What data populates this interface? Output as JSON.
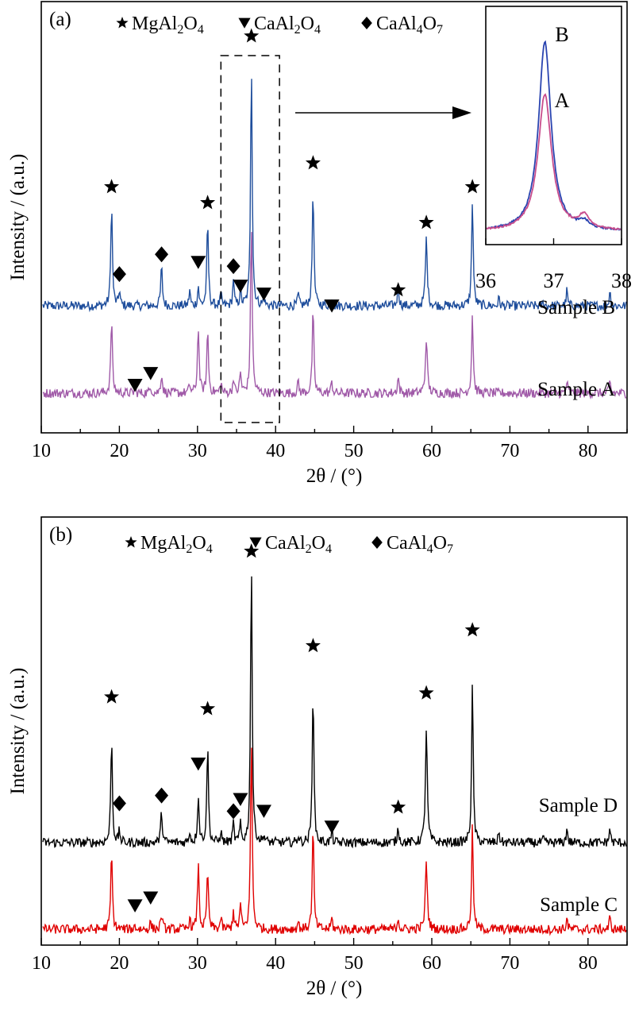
{
  "colors": {
    "sample_a": "#a05aa8",
    "sample_b": "#1f4e9c",
    "sample_c": "#e00000",
    "sample_d": "#000000",
    "inset_a": "#c84c8c",
    "inset_b": "#2a44b0"
  },
  "legend": {
    "star_label": [
      "MgAl",
      "2",
      "O",
      "4"
    ],
    "triangle_label": [
      "CaAl",
      "2",
      "O",
      "4"
    ],
    "diamond_label": [
      "CaAl",
      "4",
      "O",
      "7"
    ]
  },
  "chart_data": [
    {
      "type": "line",
      "panel_label": "(a)",
      "xlabel": "2θ / (°)",
      "ylabel": "Intensity / (a.u.)",
      "xlim": [
        10,
        85
      ],
      "x_ticks": [
        10,
        20,
        30,
        40,
        50,
        60,
        70,
        80
      ],
      "series": [
        {
          "name": "Sample B",
          "baseline": 0.32,
          "noise": 0.012,
          "peaks": [
            [
              19.0,
              0.26,
              0.12
            ],
            [
              20.0,
              0.04,
              0.1
            ],
            [
              25.4,
              0.1,
              0.12
            ],
            [
              29.0,
              0.04,
              0.1
            ],
            [
              30.1,
              0.05,
              0.1
            ],
            [
              31.3,
              0.21,
              0.12
            ],
            [
              33.0,
              0.03,
              0.1
            ],
            [
              34.6,
              0.07,
              0.1
            ],
            [
              35.5,
              0.04,
              0.1
            ],
            [
              36.9,
              0.62,
              0.12
            ],
            [
              38.5,
              0.02,
              0.1
            ],
            [
              42.9,
              0.03,
              0.1
            ],
            [
              44.8,
              0.3,
              0.12
            ],
            [
              47.2,
              0.02,
              0.1
            ],
            [
              55.7,
              0.05,
              0.12
            ],
            [
              59.3,
              0.17,
              0.14
            ],
            [
              65.2,
              0.27,
              0.12
            ],
            [
              68.6,
              0.02,
              0.1
            ],
            [
              74.3,
              0.01,
              0.1
            ],
            [
              77.3,
              0.04,
              0.1
            ],
            [
              82.8,
              0.04,
              0.1
            ]
          ]
        },
        {
          "name": "Sample A",
          "baseline": 0.1,
          "noise": 0.012,
          "peaks": [
            [
              19.0,
              0.19,
              0.12
            ],
            [
              22.0,
              0.01,
              0.1
            ],
            [
              24.0,
              0.02,
              0.1
            ],
            [
              25.4,
              0.05,
              0.12
            ],
            [
              29.0,
              0.02,
              0.1
            ],
            [
              30.1,
              0.17,
              0.12
            ],
            [
              31.3,
              0.16,
              0.12
            ],
            [
              33.0,
              0.03,
              0.1
            ],
            [
              34.6,
              0.04,
              0.1
            ],
            [
              35.5,
              0.05,
              0.12
            ],
            [
              36.9,
              0.44,
              0.12
            ],
            [
              42.9,
              0.03,
              0.1
            ],
            [
              44.8,
              0.21,
              0.12
            ],
            [
              47.2,
              0.03,
              0.1
            ],
            [
              55.7,
              0.04,
              0.12
            ],
            [
              59.3,
              0.14,
              0.14
            ],
            [
              65.2,
              0.2,
              0.12
            ],
            [
              77.3,
              0.03,
              0.1
            ],
            [
              82.8,
              0.03,
              0.1
            ]
          ]
        }
      ],
      "series_labels": [
        "Sample B",
        "Sample A"
      ],
      "markers": [
        {
          "shape": "star",
          "x": 19.0,
          "y": 0.62
        },
        {
          "shape": "diamond",
          "x": 20.0,
          "y": 0.4
        },
        {
          "shape": "diamond",
          "x": 25.4,
          "y": 0.45
        },
        {
          "shape": "triangle",
          "x": 30.1,
          "y": 0.43
        },
        {
          "shape": "star",
          "x": 31.3,
          "y": 0.58
        },
        {
          "shape": "diamond",
          "x": 34.6,
          "y": 0.42
        },
        {
          "shape": "triangle",
          "x": 35.5,
          "y": 0.37
        },
        {
          "shape": "star",
          "x": 36.9,
          "y": 1.0
        },
        {
          "shape": "triangle",
          "x": 38.5,
          "y": 0.35
        },
        {
          "shape": "star",
          "x": 44.8,
          "y": 0.68
        },
        {
          "shape": "triangle",
          "x": 47.2,
          "y": 0.32
        },
        {
          "shape": "star",
          "x": 55.7,
          "y": 0.36
        },
        {
          "shape": "star",
          "x": 59.3,
          "y": 0.53
        },
        {
          "shape": "star",
          "x": 65.2,
          "y": 0.62
        },
        {
          "shape": "triangle",
          "x": 22.0,
          "y": 0.12
        },
        {
          "shape": "triangle",
          "x": 24.0,
          "y": 0.15
        }
      ],
      "zoom_box_x": [
        33,
        40.5
      ],
      "inset": {
        "xlim": [
          36,
          38
        ],
        "x_ticks": [
          36,
          37,
          38
        ],
        "series": [
          {
            "name": "B",
            "baseline": 0.05,
            "peaks": [
              [
                36.87,
                0.86,
                0.11
              ],
              [
                37.45,
                0.03,
                0.08
              ]
            ]
          },
          {
            "name": "A",
            "baseline": 0.05,
            "peaks": [
              [
                36.87,
                0.62,
                0.12
              ],
              [
                37.45,
                0.06,
                0.1
              ]
            ]
          }
        ]
      }
    },
    {
      "type": "line",
      "panel_label": "(b)",
      "xlabel": "2θ / (°)",
      "ylabel": "Intensity / (a.u.)",
      "xlim": [
        10,
        85
      ],
      "x_ticks": [
        10,
        20,
        30,
        40,
        50,
        60,
        70,
        80
      ],
      "series": [
        {
          "name": "Sample D",
          "baseline": 0.26,
          "noise": 0.012,
          "peaks": [
            [
              19.0,
              0.27,
              0.12
            ],
            [
              20.0,
              0.03,
              0.1
            ],
            [
              25.4,
              0.08,
              0.12
            ],
            [
              29.0,
              0.03,
              0.1
            ],
            [
              30.1,
              0.12,
              0.12
            ],
            [
              31.3,
              0.25,
              0.12
            ],
            [
              33.0,
              0.03,
              0.1
            ],
            [
              34.6,
              0.05,
              0.1
            ],
            [
              35.5,
              0.05,
              0.1
            ],
            [
              36.9,
              0.72,
              0.12
            ],
            [
              38.5,
              0.02,
              0.1
            ],
            [
              42.9,
              0.02,
              0.1
            ],
            [
              44.8,
              0.4,
              0.12
            ],
            [
              47.2,
              0.03,
              0.1
            ],
            [
              55.7,
              0.04,
              0.12
            ],
            [
              59.3,
              0.29,
              0.14
            ],
            [
              65.2,
              0.4,
              0.12
            ],
            [
              68.6,
              0.03,
              0.1
            ],
            [
              74.3,
              0.01,
              0.1
            ],
            [
              77.3,
              0.04,
              0.1
            ],
            [
              82.8,
              0.04,
              0.1
            ]
          ]
        },
        {
          "name": "Sample C",
          "baseline": 0.04,
          "noise": 0.012,
          "peaks": [
            [
              19.0,
              0.2,
              0.12
            ],
            [
              22.0,
              0.01,
              0.1
            ],
            [
              24.0,
              0.02,
              0.1
            ],
            [
              25.4,
              0.04,
              0.12
            ],
            [
              29.0,
              0.03,
              0.1
            ],
            [
              30.1,
              0.17,
              0.12
            ],
            [
              31.3,
              0.15,
              0.12
            ],
            [
              33.0,
              0.03,
              0.1
            ],
            [
              34.6,
              0.05,
              0.1
            ],
            [
              35.5,
              0.06,
              0.12
            ],
            [
              36.9,
              0.49,
              0.12
            ],
            [
              42.9,
              0.02,
              0.1
            ],
            [
              44.8,
              0.26,
              0.12
            ],
            [
              47.2,
              0.03,
              0.1
            ],
            [
              55.7,
              0.03,
              0.12
            ],
            [
              59.3,
              0.18,
              0.14
            ],
            [
              65.2,
              0.26,
              0.12
            ],
            [
              77.3,
              0.03,
              0.1
            ],
            [
              82.8,
              0.03,
              0.1
            ]
          ]
        }
      ],
      "series_labels": [
        "Sample D",
        "Sample C"
      ],
      "markers": [
        {
          "shape": "star",
          "x": 19.0,
          "y": 0.63
        },
        {
          "shape": "diamond",
          "x": 20.0,
          "y": 0.36
        },
        {
          "shape": "diamond",
          "x": 25.4,
          "y": 0.38
        },
        {
          "shape": "triangle",
          "x": 30.1,
          "y": 0.46
        },
        {
          "shape": "star",
          "x": 31.3,
          "y": 0.6
        },
        {
          "shape": "diamond",
          "x": 34.6,
          "y": 0.34
        },
        {
          "shape": "triangle",
          "x": 35.5,
          "y": 0.37
        },
        {
          "shape": "star",
          "x": 36.9,
          "y": 1.0
        },
        {
          "shape": "triangle",
          "x": 38.5,
          "y": 0.34
        },
        {
          "shape": "star",
          "x": 44.8,
          "y": 0.76
        },
        {
          "shape": "triangle",
          "x": 47.2,
          "y": 0.3
        },
        {
          "shape": "star",
          "x": 55.7,
          "y": 0.35
        },
        {
          "shape": "star",
          "x": 59.3,
          "y": 0.64
        },
        {
          "shape": "star",
          "x": 65.2,
          "y": 0.8
        },
        {
          "shape": "triangle",
          "x": 22.0,
          "y": 0.1
        },
        {
          "shape": "triangle",
          "x": 24.0,
          "y": 0.12
        }
      ]
    }
  ]
}
